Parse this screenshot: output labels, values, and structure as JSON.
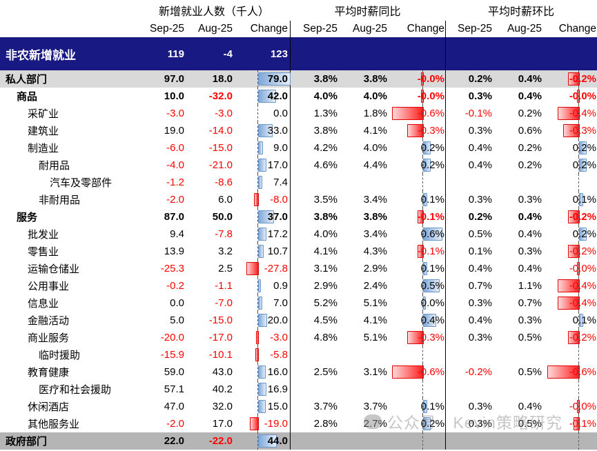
{
  "watermark": {
    "text": "公众号 · Kevin策略研究"
  },
  "colors": {
    "header_navy": "#191983",
    "private_row_gray": "#d9d9d9",
    "government_row_gray": "#b5b5b5",
    "negative_red": "#ff0000",
    "bar_positive_blue": "#7fa8d9",
    "bar_negative_red": "#ff1f1f"
  },
  "chart_data": {
    "type": "table",
    "title": "",
    "col_groups": [
      "新增就业人数（千人）",
      "平均时薪同比",
      "平均时薪环比"
    ],
    "sub_cols": [
      "Sep-25",
      "Aug-25",
      "Change"
    ],
    "bar_axis": "dashed vertical zero line in each Change column; positive bars blue to the right, negative bars red to the left",
    "bar_scale": {
      "employment_max_abs": 79,
      "pct_max_abs": 0.6
    },
    "rows": [
      {
        "label": "非农新增就业",
        "indent": 0,
        "bold": true,
        "bg": "navy",
        "emp": [
          "119",
          "-4",
          "123"
        ],
        "yoy": [
          "",
          "",
          ""
        ],
        "mom": [
          "",
          "",
          ""
        ],
        "bars": {
          "emp": null,
          "yoy": null,
          "mom": null
        }
      },
      {
        "label": "私人部门",
        "indent": 0,
        "bold": true,
        "bg": "light",
        "emp": [
          "97.0",
          "18.0",
          "79.0"
        ],
        "yoy": [
          "3.8%",
          "3.8%",
          "-0.0%"
        ],
        "mom": [
          "0.2%",
          "0.4%",
          "-0.2%"
        ],
        "bars": {
          "emp": 79.0,
          "yoy": -0.03,
          "mom": -0.2
        }
      },
      {
        "label": "商品",
        "indent": 1,
        "bold": true,
        "bg": null,
        "emp": [
          "10.0",
          "-32.0",
          "42.0"
        ],
        "yoy": [
          "4.0%",
          "4.0%",
          "-0.0%"
        ],
        "mom": [
          "0.3%",
          "0.4%",
          "-0.0%"
        ],
        "bars": {
          "emp": 42.0,
          "yoy": -0.03,
          "mom": -0.03
        }
      },
      {
        "label": "采矿业",
        "indent": 2,
        "bold": false,
        "bg": null,
        "emp": [
          "-3.0",
          "-3.0",
          "0.0"
        ],
        "yoy": [
          "1.3%",
          "1.8%",
          "-0.6%"
        ],
        "mom": [
          "-0.1%",
          "0.2%",
          "-0.4%"
        ],
        "bars": {
          "emp": 0,
          "yoy": -0.6,
          "mom": -0.4
        }
      },
      {
        "label": "建筑业",
        "indent": 2,
        "bold": false,
        "bg": null,
        "emp": [
          "19.0",
          "-14.0",
          "33.0"
        ],
        "yoy": [
          "3.8%",
          "4.1%",
          "-0.3%"
        ],
        "mom": [
          "0.3%",
          "0.6%",
          "-0.3%"
        ],
        "bars": {
          "emp": 33.0,
          "yoy": -0.3,
          "mom": -0.3
        }
      },
      {
        "label": "制造业",
        "indent": 2,
        "bold": false,
        "bg": null,
        "emp": [
          "-6.0",
          "-15.0",
          "9.0"
        ],
        "yoy": [
          "4.2%",
          "4.0%",
          "0.2%"
        ],
        "mom": [
          "0.4%",
          "0.2%",
          "0.2%"
        ],
        "bars": {
          "emp": 9.0,
          "yoy": 0.2,
          "mom": 0.2
        }
      },
      {
        "label": "耐用品",
        "indent": 3,
        "bold": false,
        "bg": null,
        "emp": [
          "-4.0",
          "-21.0",
          "17.0"
        ],
        "yoy": [
          "4.6%",
          "4.4%",
          "0.2%"
        ],
        "mom": [
          "0.4%",
          "0.2%",
          "0.2%"
        ],
        "bars": {
          "emp": 17.0,
          "yoy": 0.2,
          "mom": 0.2
        }
      },
      {
        "label": "汽车及零部件",
        "indent": 4,
        "bold": false,
        "bg": null,
        "emp": [
          "-1.2",
          "-8.6",
          "7.4"
        ],
        "yoy": [
          "",
          "",
          ""
        ],
        "mom": [
          "",
          "",
          ""
        ],
        "bars": {
          "emp": 7.4,
          "yoy": null,
          "mom": null
        }
      },
      {
        "label": "非耐用品",
        "indent": 3,
        "bold": false,
        "bg": null,
        "emp": [
          "-2.0",
          "6.0",
          "-8.0"
        ],
        "yoy": [
          "3.5%",
          "3.4%",
          "0.1%"
        ],
        "mom": [
          "0.3%",
          "0.3%",
          "0.1%"
        ],
        "bars": {
          "emp": -8.0,
          "yoy": 0.1,
          "mom": 0.1
        }
      },
      {
        "label": "服务",
        "indent": 1,
        "bold": true,
        "bg": null,
        "emp": [
          "87.0",
          "50.0",
          "37.0"
        ],
        "yoy": [
          "3.8%",
          "3.8%",
          "-0.1%"
        ],
        "mom": [
          "0.2%",
          "0.4%",
          "-0.2%"
        ],
        "bars": {
          "emp": 37.0,
          "yoy": -0.1,
          "mom": -0.2
        }
      },
      {
        "label": "批发业",
        "indent": 2,
        "bold": false,
        "bg": null,
        "emp": [
          "9.4",
          "-7.8",
          "17.2"
        ],
        "yoy": [
          "4.0%",
          "3.4%",
          "0.6%"
        ],
        "mom": [
          "0.5%",
          "0.4%",
          "0.2%"
        ],
        "bars": {
          "emp": 17.2,
          "yoy": 0.6,
          "mom": 0.2
        }
      },
      {
        "label": "零售业",
        "indent": 2,
        "bold": false,
        "bg": null,
        "emp": [
          "13.9",
          "3.2",
          "10.7"
        ],
        "yoy": [
          "4.1%",
          "4.3%",
          "-0.1%"
        ],
        "mom": [
          "0.1%",
          "0.3%",
          "-0.2%"
        ],
        "bars": {
          "emp": 10.7,
          "yoy": -0.1,
          "mom": -0.2
        }
      },
      {
        "label": "运输仓储业",
        "indent": 2,
        "bold": false,
        "bg": null,
        "emp": [
          "-25.3",
          "2.5",
          "-27.8"
        ],
        "yoy": [
          "3.1%",
          "2.9%",
          "0.1%"
        ],
        "mom": [
          "0.4%",
          "0.4%",
          "-0.0%"
        ],
        "bars": {
          "emp": -27.8,
          "yoy": 0.1,
          "mom": -0.03
        }
      },
      {
        "label": "公用事业",
        "indent": 2,
        "bold": false,
        "bg": null,
        "emp": [
          "-0.2",
          "-1.1",
          "0.9"
        ],
        "yoy": [
          "2.9%",
          "2.4%",
          "0.5%"
        ],
        "mom": [
          "0.7%",
          "1.1%",
          "-0.4%"
        ],
        "bars": {
          "emp": 0.9,
          "yoy": 0.5,
          "mom": -0.4
        }
      },
      {
        "label": "信息业",
        "indent": 2,
        "bold": false,
        "bg": null,
        "emp": [
          "0.0",
          "-7.0",
          "7.0"
        ],
        "yoy": [
          "5.2%",
          "5.1%",
          "0.0%"
        ],
        "mom": [
          "0.3%",
          "0.7%",
          "-0.4%"
        ],
        "bars": {
          "emp": 7.0,
          "yoy": 0.03,
          "mom": -0.4
        }
      },
      {
        "label": "金融活动",
        "indent": 2,
        "bold": false,
        "bg": null,
        "emp": [
          "5.0",
          "-15.0",
          "20.0"
        ],
        "yoy": [
          "4.5%",
          "4.1%",
          "0.4%"
        ],
        "mom": [
          "0.4%",
          "0.3%",
          "0.1%"
        ],
        "bars": {
          "emp": 20.0,
          "yoy": 0.4,
          "mom": 0.1
        }
      },
      {
        "label": "商业服务",
        "indent": 2,
        "bold": false,
        "bg": null,
        "emp": [
          "-20.0",
          "-17.0",
          "-3.0"
        ],
        "yoy": [
          "4.8%",
          "5.1%",
          "-0.3%"
        ],
        "mom": [
          "0.3%",
          "0.5%",
          "-0.2%"
        ],
        "bars": {
          "emp": -3.0,
          "yoy": -0.3,
          "mom": -0.2
        }
      },
      {
        "label": "临时援助",
        "indent": 3,
        "bold": false,
        "bg": null,
        "emp": [
          "-15.9",
          "-10.1",
          "-5.8"
        ],
        "yoy": [
          "",
          "",
          ""
        ],
        "mom": [
          "",
          "",
          ""
        ],
        "bars": {
          "emp": -5.8,
          "yoy": null,
          "mom": null
        }
      },
      {
        "label": "教育健康",
        "indent": 2,
        "bold": false,
        "bg": null,
        "emp": [
          "59.0",
          "43.0",
          "16.0"
        ],
        "yoy": [
          "2.5%",
          "3.1%",
          "-0.6%"
        ],
        "mom": [
          "-0.2%",
          "0.5%",
          "-0.6%"
        ],
        "bars": {
          "emp": 16.0,
          "yoy": -0.6,
          "mom": -0.6
        }
      },
      {
        "label": "医疗和社会援助",
        "indent": 3,
        "bold": false,
        "bg": null,
        "emp": [
          "57.1",
          "40.2",
          "16.9"
        ],
        "yoy": [
          "",
          "",
          ""
        ],
        "mom": [
          "",
          "",
          ""
        ],
        "bars": {
          "emp": 16.9,
          "yoy": null,
          "mom": null
        }
      },
      {
        "label": "休闲酒店",
        "indent": 2,
        "bold": false,
        "bg": null,
        "emp": [
          "47.0",
          "32.0",
          "15.0"
        ],
        "yoy": [
          "3.7%",
          "3.7%",
          "0.1%"
        ],
        "mom": [
          "0.3%",
          "0.4%",
          "-0.0%"
        ],
        "bars": {
          "emp": 15.0,
          "yoy": 0.1,
          "mom": -0.03
        }
      },
      {
        "label": "其他服务业",
        "indent": 2,
        "bold": false,
        "bg": null,
        "emp": [
          "-2.0",
          "17.0",
          "-19.0"
        ],
        "yoy": [
          "2.8%",
          "2.7%",
          "0.2%"
        ],
        "mom": [
          "0.3%",
          "0.5%",
          "-0.1%"
        ],
        "bars": {
          "emp": -19.0,
          "yoy": 0.2,
          "mom": -0.1
        }
      },
      {
        "label": "政府部门",
        "indent": 0,
        "bold": true,
        "bg": "dark",
        "emp": [
          "22.0",
          "-22.0",
          "44.0"
        ],
        "yoy": [
          "",
          "",
          ""
        ],
        "mom": [
          "",
          "",
          ""
        ],
        "bars": {
          "emp": 44.0,
          "yoy": null,
          "mom": null
        }
      }
    ]
  }
}
